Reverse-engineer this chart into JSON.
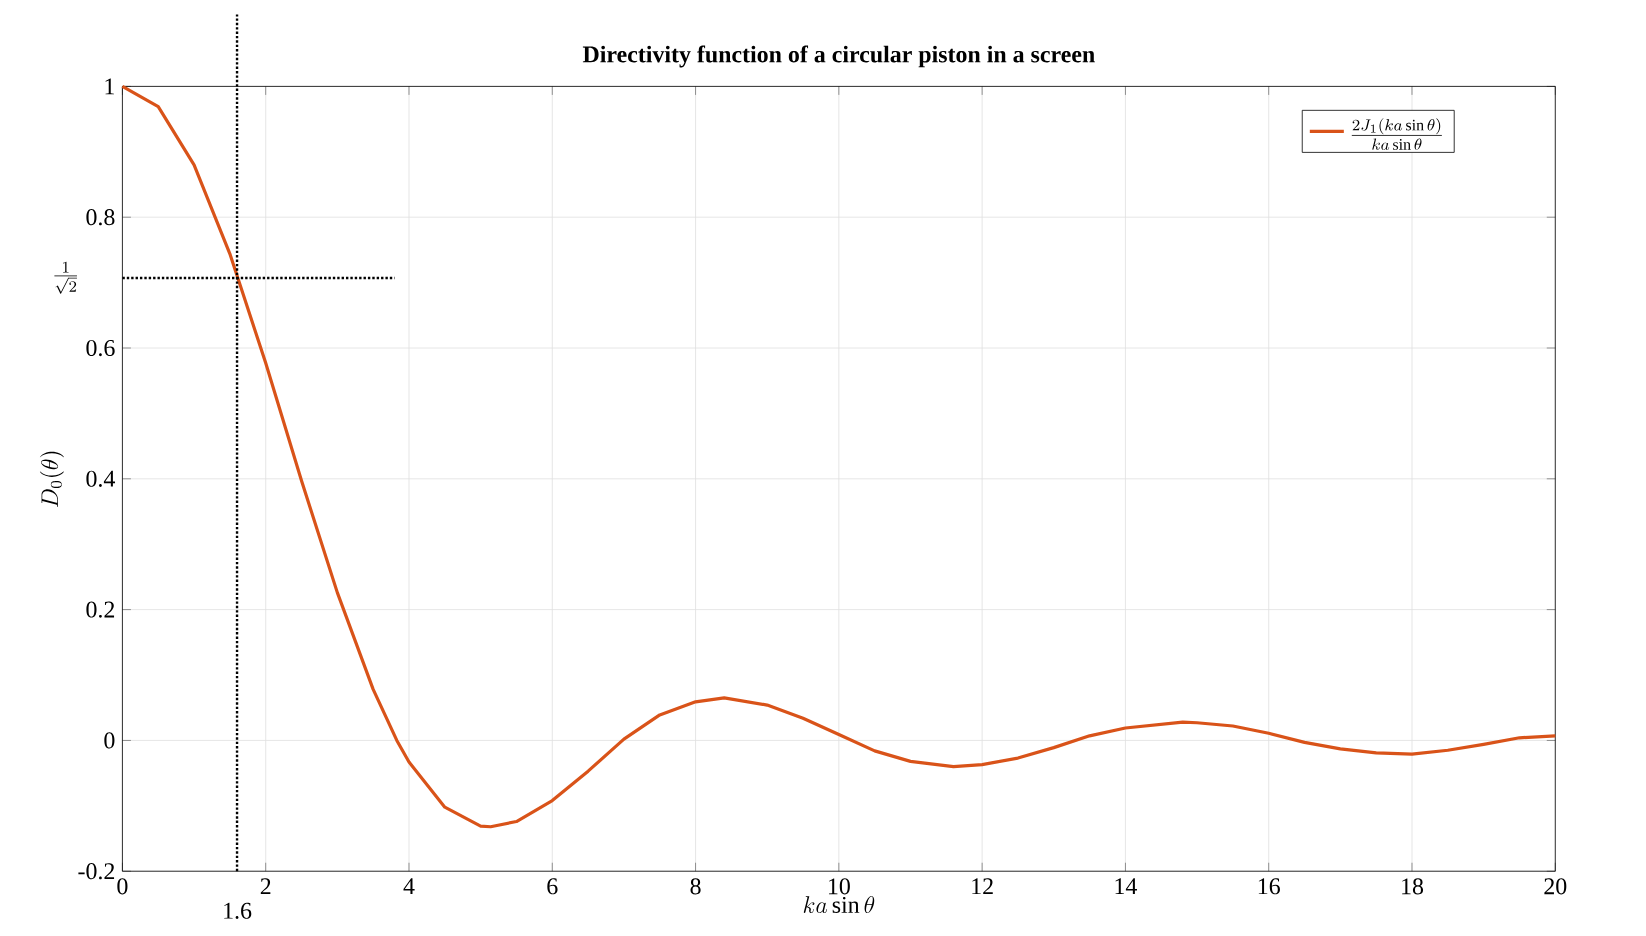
{
  "chart_data": {
    "type": "line",
    "title": "Directivity function of a circular piston in a screen",
    "xlabel": "ka\\sin\\theta",
    "ylabel": "D_0(\\theta)",
    "xlim": [
      0,
      20
    ],
    "ylim": [
      -0.2,
      1
    ],
    "xticks": [
      0,
      2,
      4,
      6,
      8,
      10,
      12,
      14,
      16,
      18,
      20
    ],
    "yticks": [
      -0.2,
      0,
      0.2,
      0.4,
      0.6,
      0.8,
      1
    ],
    "grid": true,
    "legend": "top right",
    "ref_lines": [
      {
        "axis": "x",
        "value": 1.6,
        "label": "1.6",
        "line_style": "dotted",
        "color": "#000000"
      },
      {
        "axis": "y",
        "value": 0.7071,
        "label": "\\frac{1}{\\sqrt{2}}",
        "line_style": "dotted",
        "color": "#000000"
      }
    ],
    "series": [
      {
        "name": "\\frac{2J_1(ka\\sin\\theta)}{ka\\sin\\theta}",
        "color": "#d95319",
        "x": [
          0,
          0.5,
          1,
          1.5,
          2,
          2.5,
          3,
          3.5,
          3.83,
          4,
          4.5,
          5,
          5.14,
          5.5,
          6,
          6.5,
          7,
          7.5,
          8,
          8.4,
          9,
          9.5,
          10,
          10.5,
          11,
          11.6,
          12,
          12.5,
          13,
          13.5,
          14,
          14.8,
          15,
          15.5,
          16,
          16.5,
          17,
          17.5,
          18,
          18.5,
          19,
          19.5,
          20
        ],
        "values": [
          1,
          0.969,
          0.88,
          0.744,
          0.577,
          0.397,
          0.226,
          0.078,
          0,
          -0.033,
          -0.102,
          -0.131,
          -0.132,
          -0.124,
          -0.092,
          -0.047,
          0.002,
          0.039,
          0.059,
          0.065,
          0.054,
          0.034,
          0.009,
          -0.016,
          -0.032,
          -0.04,
          -0.037,
          -0.027,
          -0.011,
          0.007,
          0.019,
          0.028,
          0.027,
          0.022,
          0.011,
          -0.003,
          -0.013,
          -0.019,
          -0.021,
          -0.015,
          -0.006,
          0.004,
          0.007
        ]
      }
    ]
  }
}
